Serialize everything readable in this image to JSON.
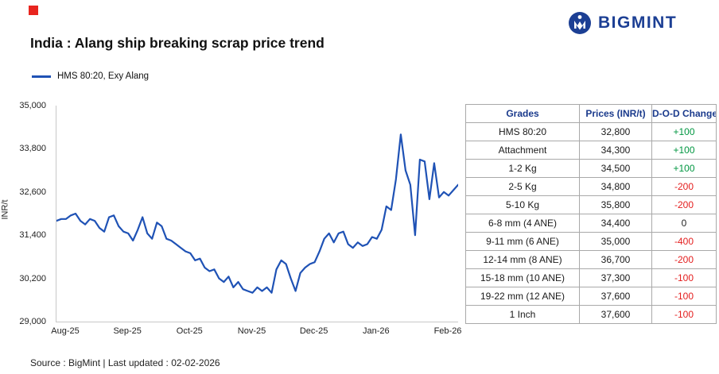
{
  "brand": {
    "logo_text": "BIGMINT",
    "logo_color": "#1c3f94",
    "red_square_color": "#e8251f"
  },
  "header": {
    "title": "India : Alang ship breaking scrap price trend"
  },
  "chart_data": {
    "type": "line",
    "legend": "HMS 80:20, Exy Alang",
    "ylabel": "INR/t",
    "line_color": "#1f52b5",
    "ylim": [
      29000,
      35000
    ],
    "grid": false,
    "legend_position": "top-left",
    "y_ticks": [
      29000,
      30200,
      31400,
      32600,
      33800,
      35000
    ],
    "y_tick_labels": [
      "29,000",
      "30,200",
      "31,400",
      "32,600",
      "33,800",
      "35,000"
    ],
    "x_tick_labels": [
      "Aug-25",
      "Sep-25",
      "Oct-25",
      "Nov-25",
      "Dec-25",
      "Jan-26",
      "Feb-26"
    ],
    "x_tick_indices": [
      2,
      15,
      28,
      41,
      54,
      67,
      82
    ],
    "values": [
      31800,
      31850,
      31850,
      31950,
      32000,
      31800,
      31700,
      31850,
      31800,
      31600,
      31500,
      31900,
      31950,
      31650,
      31500,
      31450,
      31250,
      31550,
      31900,
      31450,
      31300,
      31750,
      31650,
      31300,
      31250,
      31150,
      31050,
      30950,
      30900,
      30700,
      30750,
      30500,
      30400,
      30450,
      30200,
      30100,
      30250,
      29950,
      30100,
      29900,
      29850,
      29800,
      29950,
      29850,
      29950,
      29800,
      30450,
      30700,
      30600,
      30200,
      29850,
      30350,
      30500,
      30600,
      30650,
      30950,
      31300,
      31450,
      31200,
      31450,
      31500,
      31150,
      31050,
      31200,
      31100,
      31150,
      31350,
      31300,
      31550,
      32200,
      32100,
      32950,
      34200,
      33200,
      32800,
      31400,
      33500,
      33450,
      32400,
      33400,
      32450,
      32600,
      32500,
      32650,
      32800
    ]
  },
  "table": {
    "columns": [
      "Grades",
      "Prices (INR/t)",
      "D-O-D Change"
    ],
    "rows": [
      {
        "grade": "HMS 80:20",
        "price": "32,800",
        "change": "+100"
      },
      {
        "grade": "Attachment",
        "price": "34,300",
        "change": "+100"
      },
      {
        "grade": "1-2 Kg",
        "price": "34,500",
        "change": "+100"
      },
      {
        "grade": "2-5 Kg",
        "price": "34,800",
        "change": "-200"
      },
      {
        "grade": "5-10 Kg",
        "price": "35,800",
        "change": "-200"
      },
      {
        "grade": "6-8 mm (4 ANE)",
        "price": "34,400",
        "change": "0"
      },
      {
        "grade": "9-11 mm (6 ANE)",
        "price": "35,000",
        "change": "-400"
      },
      {
        "grade": "12-14 mm (8 ANE)",
        "price": "36,700",
        "change": "-200"
      },
      {
        "grade": "15-18 mm (10 ANE)",
        "price": "37,300",
        "change": "-100"
      },
      {
        "grade": "19-22 mm (12 ANE)",
        "price": "37,600",
        "change": "-100"
      },
      {
        "grade": "1 Inch",
        "price": "37,600",
        "change": "-100"
      }
    ],
    "colors": {
      "positive": "#009640",
      "negative": "#e41e1e",
      "zero": "#222222"
    }
  },
  "footer": {
    "text": "Source : BigMint | Last updated : 02-02-2026"
  }
}
